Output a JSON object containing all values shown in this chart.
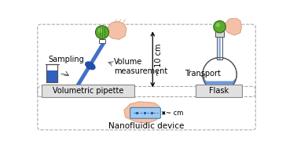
{
  "bg_color": "#ffffff",
  "blue_color": "#3060c0",
  "light_blue": "#a0c8f0",
  "green_color": "#5aaa30",
  "dark_green": "#2a6a10",
  "light_green": "#80cc50",
  "pink_color": "#f5c0a8",
  "pink_edge": "#d89878",
  "gray_color": "#b0b0b0",
  "dark_gray": "#505050",
  "white": "#ffffff",
  "label_pipette": "Volumetric pipette",
  "label_flask": "Flask",
  "label_device": "Nanofluidic device",
  "label_sampling": "Sampling",
  "label_volume": "Volume\nmeasurement",
  "label_transport": "Transport",
  "label_10cm": "~ 10 cm",
  "label_cm": "~ cm",
  "fontsize": 7.0,
  "fontsize_sm": 6.0,
  "dashed_color": "#aaaaaa"
}
